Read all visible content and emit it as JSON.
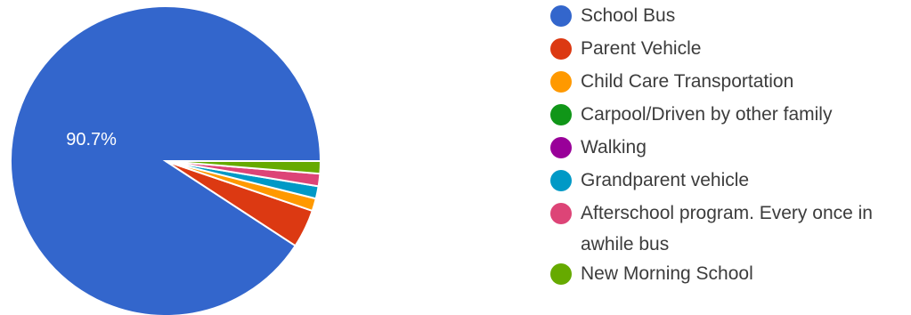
{
  "chart_data": {
    "type": "pie",
    "title": "",
    "series": [
      {
        "name": "School Bus",
        "value": 90.7,
        "color": "#3366cc",
        "label": "90.7%"
      },
      {
        "name": "Parent Vehicle",
        "value": 4.0,
        "color": "#dc3912",
        "label": ""
      },
      {
        "name": "Child Care Transportation",
        "value": 1.3,
        "color": "#ff9900",
        "label": ""
      },
      {
        "name": "Carpool/Driven by other family",
        "value": 0.0,
        "color": "#109618",
        "label": ""
      },
      {
        "name": "Walking",
        "value": 0.0,
        "color": "#990099",
        "label": ""
      },
      {
        "name": "Grandparent vehicle",
        "value": 1.3,
        "color": "#0099c6",
        "label": ""
      },
      {
        "name": "Afterschool program. Every once in awhile bus",
        "value": 1.3,
        "color": "#dd4477",
        "label": ""
      },
      {
        "name": "New Morning School",
        "value": 1.3,
        "color": "#66aa00",
        "label": ""
      }
    ],
    "legend_position": "right"
  }
}
